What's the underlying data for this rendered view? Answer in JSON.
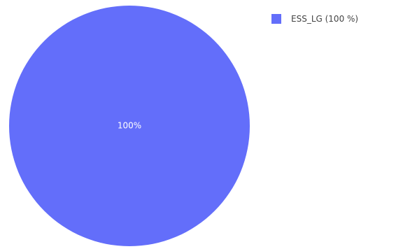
{
  "chart_data": {
    "type": "pie",
    "slices": [
      {
        "label": "ESS_LG",
        "value": 100,
        "percent_label": "100%",
        "legend_label": "ESS_LG (100 %)",
        "color": "#636efa"
      }
    ],
    "legend_placement": "top-right",
    "text_color_on_slice": "#ffffff"
  }
}
